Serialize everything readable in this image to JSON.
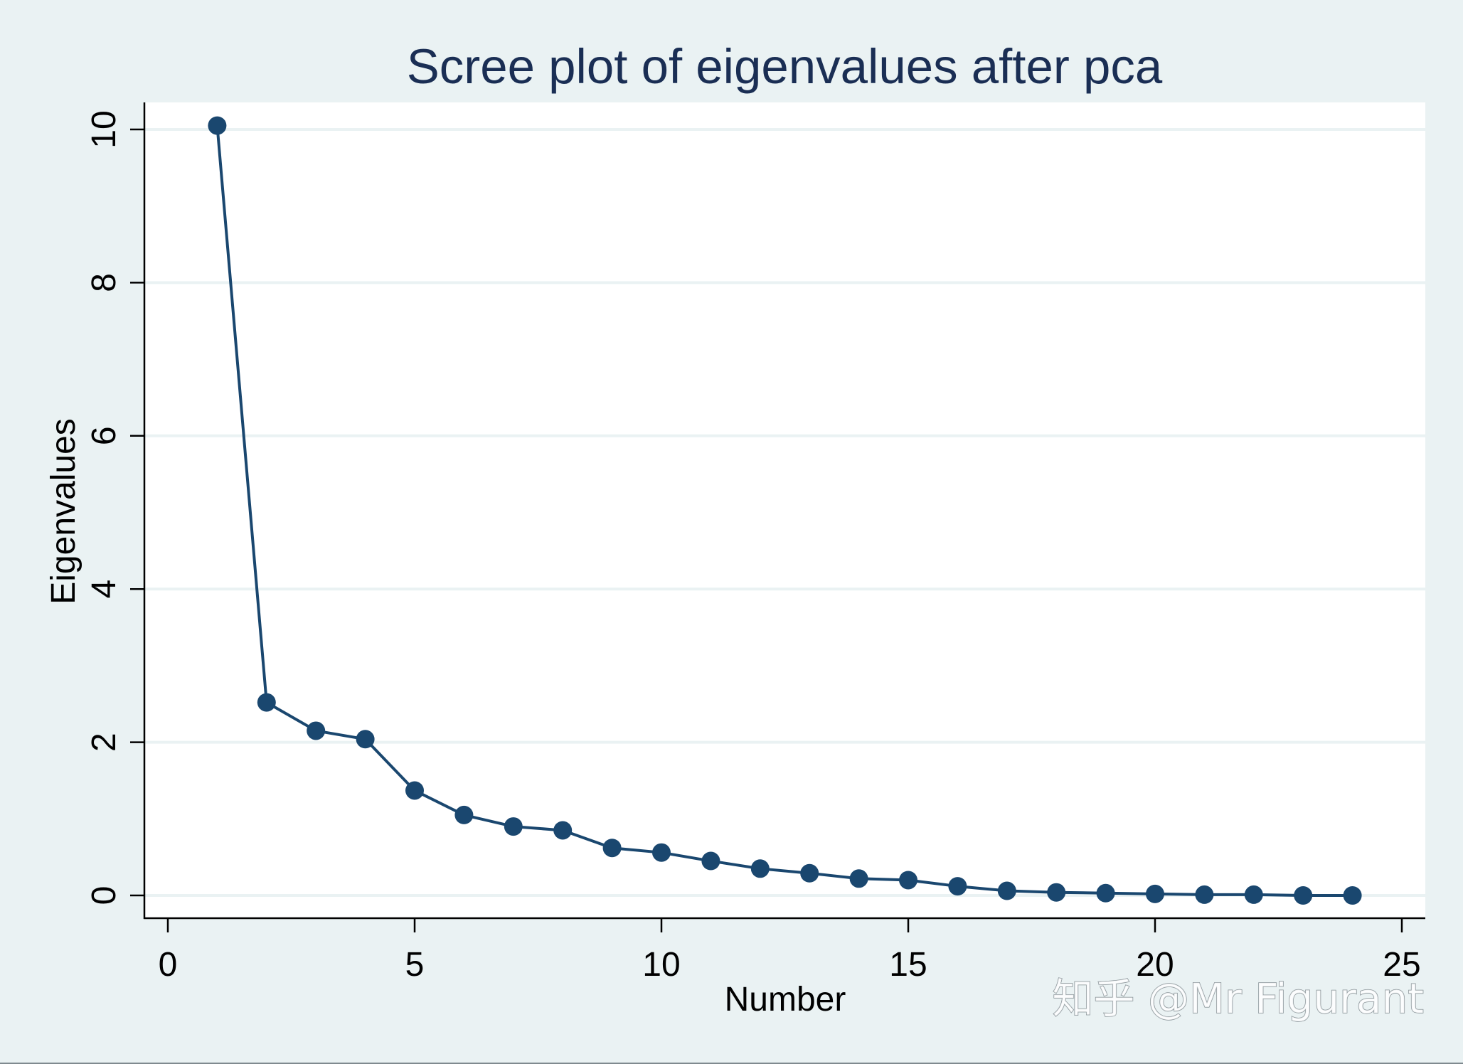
{
  "chart_data": {
    "type": "line",
    "title": "Scree plot of eigenvalues after pca",
    "xlabel": "Number",
    "ylabel": "Eigenvalues",
    "xlim": [
      0,
      25
    ],
    "ylim": [
      0,
      10
    ],
    "x_ticks": [
      "0",
      "5",
      "10",
      "15",
      "20",
      "25"
    ],
    "y_ticks": [
      "0",
      "2",
      "4",
      "6",
      "8",
      "10"
    ],
    "grid": true,
    "markers": true,
    "series": [
      {
        "x": [
          1,
          2,
          3,
          4,
          5,
          6,
          7,
          8,
          9,
          10,
          11,
          12,
          13,
          14,
          15,
          16,
          17,
          18,
          19,
          20,
          21,
          22,
          23,
          24
        ],
        "values": [
          10.05,
          2.52,
          2.15,
          2.04,
          1.37,
          1.05,
          0.9,
          0.85,
          0.62,
          0.56,
          0.45,
          0.35,
          0.29,
          0.22,
          0.2,
          0.12,
          0.06,
          0.04,
          0.03,
          0.02,
          0.01,
          0.01,
          0.0,
          0.0
        ],
        "color": "#1a476f"
      }
    ]
  },
  "colors": {
    "title": "#1a2e54",
    "series": "#1a476f",
    "background": "#eaf2f3",
    "plot_area": "#ffffff",
    "grid": "#eaf2f3"
  },
  "watermark": "知乎 @Mr Figurant"
}
